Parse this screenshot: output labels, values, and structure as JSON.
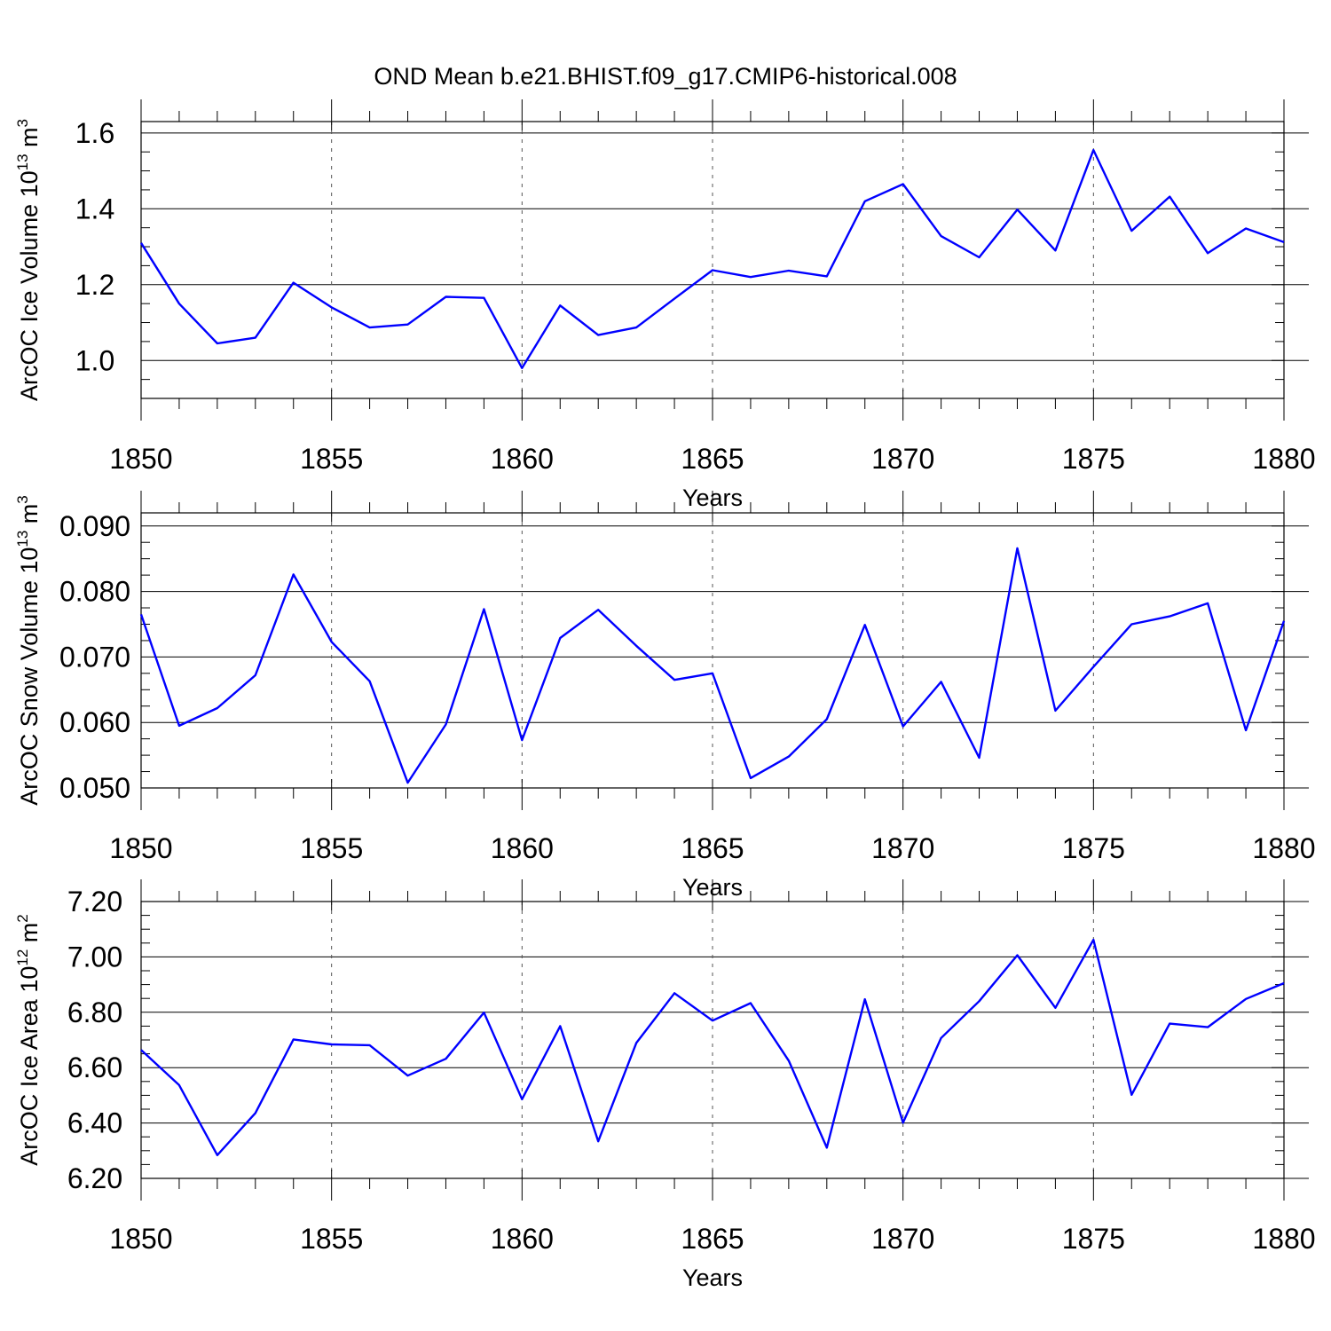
{
  "title": "OND Mean b.e21.BHIST.f09_g17.CMIP6-historical.008",
  "colors": {
    "line": "#0000ff",
    "axis": "#000000",
    "grid": "#555555"
  },
  "chart_data": [
    {
      "type": "line",
      "title": "OND Mean b.e21.BHIST.f09_g17.CMIP6-historical.008",
      "xlabel": "Years",
      "ylabel": "ArcOC Ice Volume 10",
      "ylabel_sup": "13",
      "ylabel_unit": " m",
      "ylabel_unit_sup": "3",
      "xlim": [
        1850,
        1880
      ],
      "ylim": [
        0.9,
        1.63
      ],
      "xticks": [
        1850,
        1855,
        1860,
        1865,
        1870,
        1875,
        1880
      ],
      "yticks": [
        1.0,
        1.2,
        1.4,
        1.6
      ],
      "ytick_labels": [
        "1.0",
        "1.2",
        "1.4",
        "1.6"
      ],
      "y_minor_step": 0.05,
      "x": [
        1850,
        1851,
        1852,
        1853,
        1854,
        1855,
        1856,
        1857,
        1858,
        1859,
        1860,
        1861,
        1862,
        1863,
        1864,
        1865,
        1866,
        1867,
        1868,
        1869,
        1870,
        1871,
        1872,
        1873,
        1874,
        1875,
        1876,
        1877,
        1878,
        1879,
        1880
      ],
      "values": [
        1.31,
        1.15,
        1.045,
        1.06,
        1.205,
        1.14,
        1.087,
        1.095,
        1.168,
        1.165,
        0.98,
        1.145,
        1.067,
        1.087,
        1.163,
        1.238,
        1.22,
        1.237,
        1.222,
        1.42,
        1.465,
        1.328,
        1.272,
        1.398,
        1.29,
        1.555,
        1.342,
        1.432,
        1.283,
        1.348,
        1.312
      ]
    },
    {
      "type": "line",
      "xlabel": "Years",
      "ylabel": "ArcOC Snow Volume 10",
      "ylabel_sup": "13",
      "ylabel_unit": " m",
      "ylabel_unit_sup": "3",
      "xlim": [
        1850,
        1880
      ],
      "ylim": [
        0.05,
        0.092
      ],
      "xticks": [
        1850,
        1855,
        1860,
        1865,
        1870,
        1875,
        1880
      ],
      "yticks": [
        0.05,
        0.06,
        0.07,
        0.08,
        0.09
      ],
      "ytick_labels": [
        "0.050",
        "0.060",
        "0.070",
        "0.080",
        "0.090"
      ],
      "y_minor_step": 0.0025,
      "x": [
        1850,
        1851,
        1852,
        1853,
        1854,
        1855,
        1856,
        1857,
        1858,
        1859,
        1860,
        1861,
        1862,
        1863,
        1864,
        1865,
        1866,
        1867,
        1868,
        1869,
        1870,
        1871,
        1872,
        1873,
        1874,
        1875,
        1876,
        1877,
        1878,
        1879,
        1880
      ],
      "values": [
        0.0765,
        0.0595,
        0.0622,
        0.0672,
        0.0826,
        0.0723,
        0.0663,
        0.0508,
        0.0597,
        0.0773,
        0.0573,
        0.0729,
        0.0772,
        0.0717,
        0.0665,
        0.0675,
        0.0515,
        0.0548,
        0.0605,
        0.0749,
        0.0594,
        0.0662,
        0.0546,
        0.0866,
        0.0618,
        0.0685,
        0.075,
        0.0762,
        0.0782,
        0.0588,
        0.0755
      ]
    },
    {
      "type": "line",
      "xlabel": "Years",
      "ylabel": "ArcOC Ice Area 10",
      "ylabel_sup": "12",
      "ylabel_unit": " m",
      "ylabel_unit_sup": "2",
      "xlim": [
        1850,
        1880
      ],
      "ylim": [
        6.2,
        7.2
      ],
      "xticks": [
        1850,
        1855,
        1860,
        1865,
        1870,
        1875,
        1880
      ],
      "yticks": [
        6.2,
        6.4,
        6.6,
        6.8,
        7.0,
        7.2
      ],
      "ytick_labels": [
        "6.20",
        "6.40",
        "6.60",
        "6.80",
        "7.00",
        "7.20"
      ],
      "y_minor_step": 0.05,
      "x": [
        1850,
        1851,
        1852,
        1853,
        1854,
        1855,
        1856,
        1857,
        1858,
        1859,
        1860,
        1861,
        1862,
        1863,
        1864,
        1865,
        1866,
        1867,
        1868,
        1869,
        1870,
        1871,
        1872,
        1873,
        1874,
        1875,
        1876,
        1877,
        1878,
        1879,
        1880
      ],
      "values": [
        6.664,
        6.537,
        6.284,
        6.436,
        6.702,
        6.684,
        6.681,
        6.571,
        6.632,
        6.799,
        6.486,
        6.75,
        6.334,
        6.689,
        6.869,
        6.77,
        6.833,
        6.625,
        6.311,
        6.847,
        6.401,
        6.707,
        6.84,
        7.006,
        6.816,
        7.062,
        6.502,
        6.759,
        6.746,
        6.848,
        6.905
      ]
    }
  ]
}
